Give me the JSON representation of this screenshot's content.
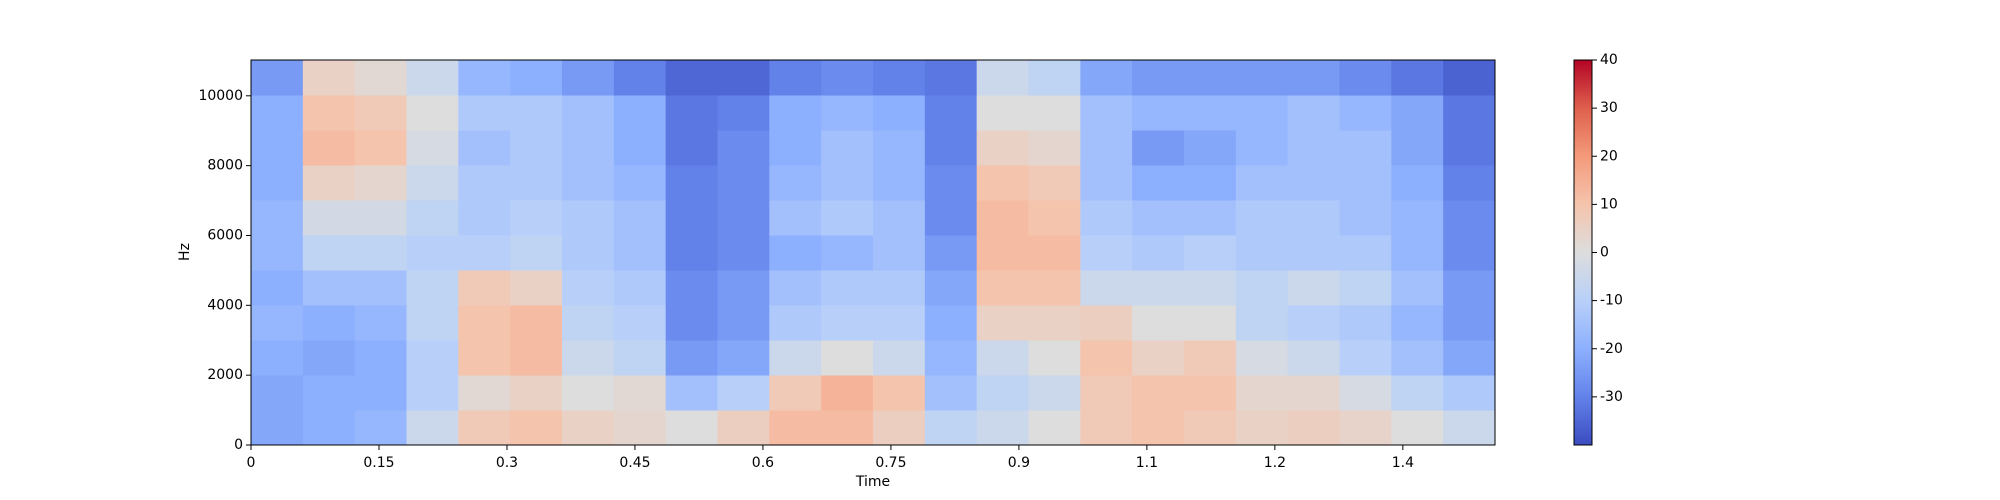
{
  "chart_data": {
    "type": "heatmap",
    "x_label": "Time",
    "y_label": "Hz",
    "xlim": [
      0,
      1.458
    ],
    "ylim": [
      0,
      11025
    ],
    "xticks": [
      0,
      0.15,
      0.3,
      0.45,
      0.6,
      0.75,
      0.9,
      {
        "value": 1.05,
        "label": "1.1"
      },
      1.2,
      {
        "value": 1.35,
        "label": "1.4"
      }
    ],
    "yticks": [
      0,
      2000,
      4000,
      6000,
      8000,
      10000
    ],
    "colormap": "coolwarm",
    "colors": [
      "#3b4cc0",
      "#6282ea",
      "#8db0fe",
      "#b8d0f9",
      "#dddddd",
      "#f5c4ad",
      "#f49a7b",
      "#de604d",
      "#b40426"
    ],
    "colorbar": {
      "lim": [
        -40,
        40
      ],
      "ticks": [
        -30,
        -20,
        -10,
        0,
        10,
        20,
        30,
        40
      ]
    },
    "z": [
      [
        -22,
        -20,
        -18,
        -5,
        8,
        10,
        5,
        3,
        0,
        6,
        12,
        12,
        6,
        -8,
        -5,
        0,
        8,
        10,
        8,
        5,
        6,
        4,
        0,
        -5
      ],
      [
        -22,
        -20,
        -20,
        -10,
        2,
        5,
        0,
        2,
        -15,
        -10,
        8,
        14,
        10,
        -15,
        -8,
        -5,
        8,
        10,
        10,
        3,
        3,
        -2,
        -8,
        -12
      ],
      [
        -20,
        -22,
        -20,
        -10,
        10,
        12,
        -5,
        -8,
        -25,
        -22,
        -5,
        0,
        -5,
        -18,
        -5,
        0,
        10,
        5,
        8,
        -2,
        -5,
        -10,
        -15,
        -22
      ],
      [
        -18,
        -20,
        -18,
        -8,
        10,
        12,
        -8,
        -10,
        -28,
        -25,
        -12,
        -10,
        -10,
        -20,
        5,
        5,
        6,
        0,
        0,
        -8,
        -10,
        -12,
        -18,
        -25
      ],
      [
        -20,
        -15,
        -15,
        -8,
        8,
        5,
        -10,
        -12,
        -28,
        -25,
        -15,
        -12,
        -12,
        -22,
        10,
        10,
        -5,
        -5,
        -5,
        -8,
        -5,
        -8,
        -15,
        -25
      ],
      [
        -18,
        -8,
        -8,
        -10,
        -10,
        -8,
        -12,
        -15,
        -30,
        -28,
        -20,
        -18,
        -15,
        -25,
        12,
        12,
        -10,
        -12,
        -10,
        -12,
        -12,
        -12,
        -18,
        -28
      ],
      [
        -18,
        -3,
        -3,
        -8,
        -12,
        -10,
        -12,
        -15,
        -30,
        -28,
        -15,
        -12,
        -15,
        -28,
        12,
        10,
        -12,
        -15,
        -15,
        -12,
        -12,
        -15,
        -18,
        -28
      ],
      [
        -20,
        5,
        3,
        -5,
        -12,
        -12,
        -15,
        -18,
        -30,
        -28,
        -18,
        -15,
        -18,
        -28,
        10,
        8,
        -15,
        -20,
        -20,
        -15,
        -15,
        -15,
        -20,
        -30
      ],
      [
        -20,
        12,
        10,
        -2,
        -15,
        -12,
        -15,
        -20,
        -32,
        -28,
        -20,
        -15,
        -18,
        -30,
        5,
        3,
        -15,
        -25,
        -22,
        -18,
        -15,
        -15,
        -22,
        -32
      ],
      [
        -20,
        10,
        8,
        0,
        -12,
        -12,
        -15,
        -20,
        -32,
        -30,
        -20,
        -18,
        -20,
        -30,
        0,
        0,
        -15,
        -18,
        -18,
        -18,
        -15,
        -18,
        -22,
        -32
      ],
      [
        -25,
        5,
        2,
        -5,
        -18,
        -20,
        -25,
        -30,
        -35,
        -35,
        -30,
        -28,
        -30,
        -32,
        -5,
        -8,
        -22,
        -25,
        -25,
        -25,
        -25,
        -28,
        -32,
        -36
      ]
    ]
  }
}
